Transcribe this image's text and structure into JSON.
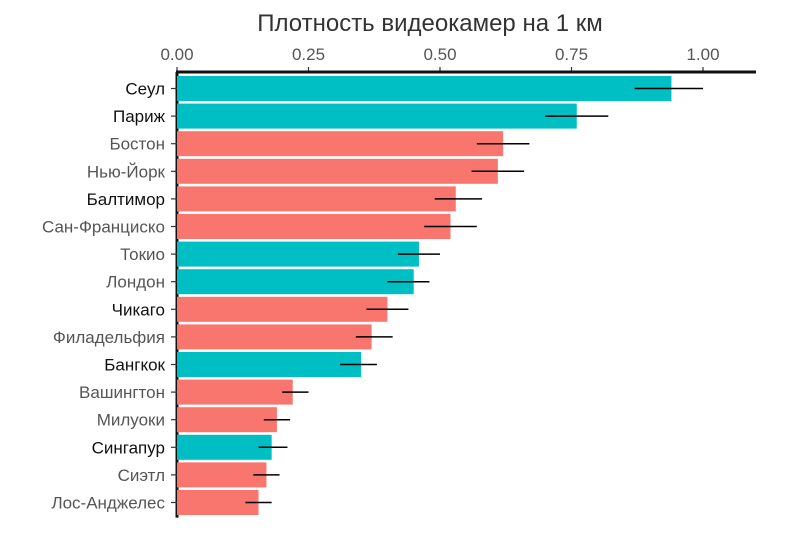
{
  "chart_data": {
    "type": "bar",
    "orientation": "horizontal",
    "title": "Плотность видеокамер на 1 км",
    "xlim": [
      0,
      1.1
    ],
    "xticks": [
      "0.00",
      "0.25",
      "0.50",
      "0.75",
      "1.00"
    ],
    "tick_values": [
      0,
      0.25,
      0.5,
      0.75,
      1.0
    ],
    "axis_position": "top",
    "grid": false,
    "legend": "none",
    "colors": {
      "group_a": "#00BFC4",
      "group_b": "#F8766D",
      "error_bar": "#000000"
    },
    "categories": [
      "Сеул",
      "Париж",
      "Бостон",
      "Нью-Йорк",
      "Балтимор",
      "Сан-Франциско",
      "Токио",
      "Лондон",
      "Чикаго",
      "Филадельфия",
      "Бангкок",
      "Вашингтон",
      "Милуоки",
      "Сингапур",
      "Сиэтл",
      "Лос-Анджелес"
    ],
    "values": [
      0.94,
      0.76,
      0.62,
      0.61,
      0.53,
      0.52,
      0.46,
      0.45,
      0.4,
      0.37,
      0.35,
      0.22,
      0.19,
      0.18,
      0.17,
      0.155
    ],
    "error_low": [
      0.87,
      0.7,
      0.57,
      0.56,
      0.49,
      0.47,
      0.42,
      0.4,
      0.36,
      0.34,
      0.31,
      0.2,
      0.165,
      0.155,
      0.145,
      0.13
    ],
    "error_high": [
      1.0,
      0.82,
      0.67,
      0.66,
      0.58,
      0.57,
      0.5,
      0.48,
      0.44,
      0.41,
      0.38,
      0.25,
      0.215,
      0.21,
      0.195,
      0.18
    ],
    "groups": [
      "a",
      "a",
      "b",
      "b",
      "b",
      "b",
      "a",
      "a",
      "b",
      "b",
      "a",
      "b",
      "b",
      "a",
      "b",
      "b"
    ],
    "label_weight": [
      "dark",
      "dark",
      "light",
      "light",
      "dark",
      "light",
      "light",
      "light",
      "dark",
      "light",
      "dark",
      "light",
      "light",
      "dark",
      "light",
      "light"
    ]
  }
}
